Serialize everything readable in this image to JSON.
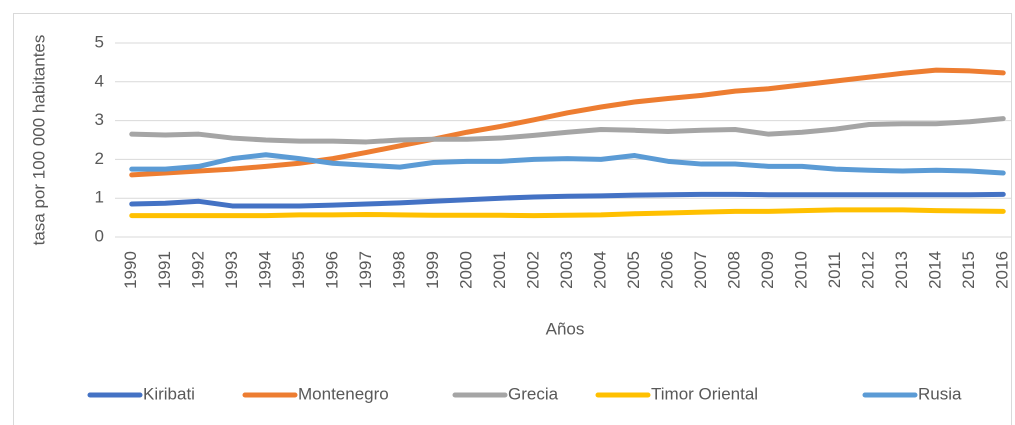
{
  "chart_data": {
    "type": "line",
    "y_label": "tasa por 100 000 habitantes",
    "x_label": "Años",
    "categories": [
      "1990",
      "1991",
      "1992",
      "1993",
      "1994",
      "1995",
      "1996",
      "1997",
      "1998",
      "1999",
      "2000",
      "2001",
      "2002",
      "2003",
      "2004",
      "2005",
      "2006",
      "2007",
      "2008",
      "2009",
      "2010",
      "2011",
      "2012",
      "2013",
      "2014",
      "2015",
      "2016"
    ],
    "ylim": [
      0,
      5
    ],
    "yticks": [
      0,
      1,
      2,
      3,
      4,
      5
    ],
    "grid": true,
    "legend": "bottom",
    "series": [
      {
        "name": "Kiribati",
        "color": "#4472c4",
        "values": [
          0.85,
          0.87,
          0.92,
          0.8,
          0.8,
          0.8,
          0.82,
          0.85,
          0.88,
          0.92,
          0.96,
          1.0,
          1.03,
          1.05,
          1.06,
          1.08,
          1.09,
          1.1,
          1.1,
          1.09,
          1.09,
          1.09,
          1.09,
          1.09,
          1.09,
          1.09,
          1.1
        ]
      },
      {
        "name": "Montenegro",
        "color": "#ed7d31",
        "values": [
          1.6,
          1.65,
          1.7,
          1.75,
          1.82,
          1.9,
          2.02,
          2.18,
          2.35,
          2.52,
          2.7,
          2.85,
          3.02,
          3.2,
          3.35,
          3.48,
          3.57,
          3.65,
          3.76,
          3.82,
          3.92,
          4.02,
          4.12,
          4.22,
          4.3,
          4.28,
          4.23
        ]
      },
      {
        "name": "Grecia",
        "color": "#a5a5a5",
        "values": [
          2.65,
          2.63,
          2.65,
          2.55,
          2.5,
          2.47,
          2.47,
          2.45,
          2.5,
          2.52,
          2.52,
          2.55,
          2.62,
          2.7,
          2.77,
          2.75,
          2.72,
          2.75,
          2.77,
          2.65,
          2.7,
          2.78,
          2.9,
          2.92,
          2.92,
          2.97,
          3.05
        ]
      },
      {
        "name": "Timor Oriental",
        "color": "#ffc000",
        "values": [
          0.55,
          0.55,
          0.55,
          0.55,
          0.55,
          0.57,
          0.57,
          0.58,
          0.57,
          0.56,
          0.56,
          0.56,
          0.55,
          0.56,
          0.57,
          0.6,
          0.62,
          0.64,
          0.66,
          0.66,
          0.68,
          0.7,
          0.7,
          0.7,
          0.68,
          0.67,
          0.66
        ]
      },
      {
        "name": "Rusia",
        "color": "#5b9bd5",
        "values": [
          1.75,
          1.75,
          1.82,
          2.02,
          2.12,
          2.02,
          1.9,
          1.85,
          1.8,
          1.92,
          1.95,
          1.95,
          2.0,
          2.02,
          2.0,
          2.1,
          1.95,
          1.88,
          1.88,
          1.82,
          1.82,
          1.75,
          1.72,
          1.7,
          1.72,
          1.7,
          1.65
        ]
      }
    ]
  }
}
